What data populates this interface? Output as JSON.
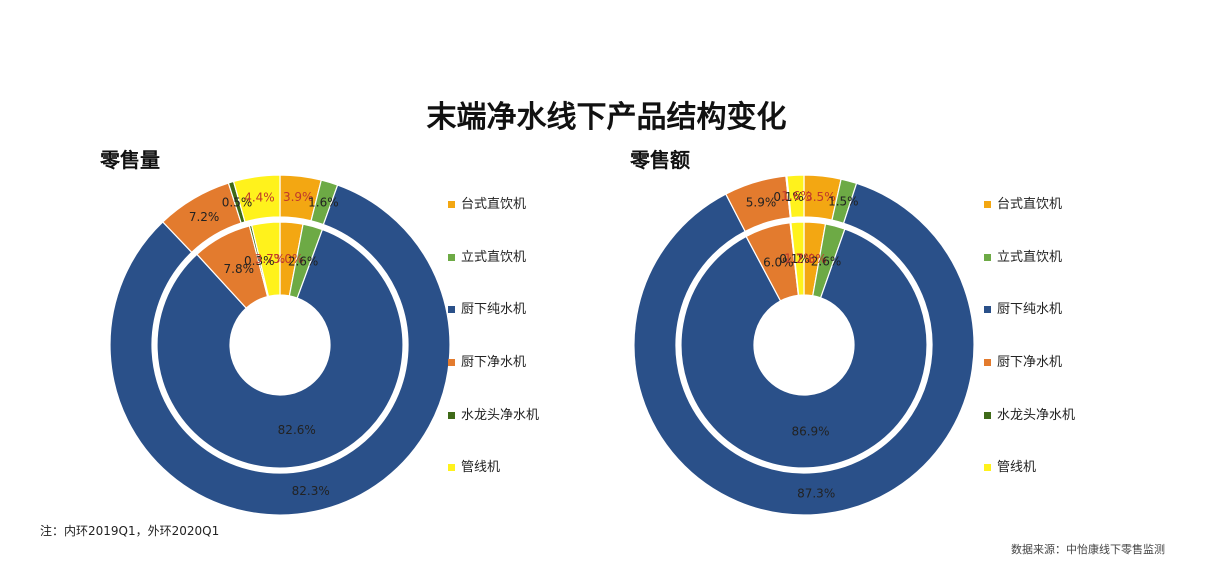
{
  "title": "末端净水线下产品结构变化",
  "note": "注：内环2019Q1，外环2020Q1",
  "source": "数据来源：中怡康线下零售监测",
  "categories": [
    {
      "name": "台式直饮机",
      "color": "#F3A712"
    },
    {
      "name": "立式直饮机",
      "color": "#6DAA45"
    },
    {
      "name": "厨下纯水机",
      "color": "#2A5089"
    },
    {
      "name": "厨下净水机",
      "color": "#E37B2E"
    },
    {
      "name": "水龙头净水机",
      "color": "#3F6A18"
    },
    {
      "name": "管线机",
      "color": "#FFF21C"
    }
  ],
  "chart_data": [
    {
      "type": "pie",
      "title": "零售量",
      "rings": [
        {
          "name": "内环2019Q1",
          "values": [
            3.0,
            2.6,
            82.6,
            7.8,
            0.3,
            3.7
          ]
        },
        {
          "name": "外环2020Q1",
          "values": [
            3.9,
            1.6,
            82.3,
            7.2,
            0.5,
            4.4
          ]
        }
      ]
    },
    {
      "type": "pie",
      "title": "零售额",
      "rings": [
        {
          "name": "内环2019Q1",
          "values": [
            2.8,
            2.6,
            86.9,
            6.0,
            0.1,
            1.7
          ]
        },
        {
          "name": "外环2020Q1",
          "values": [
            3.5,
            1.5,
            87.3,
            5.9,
            0.1,
            1.6
          ]
        }
      ]
    }
  ]
}
